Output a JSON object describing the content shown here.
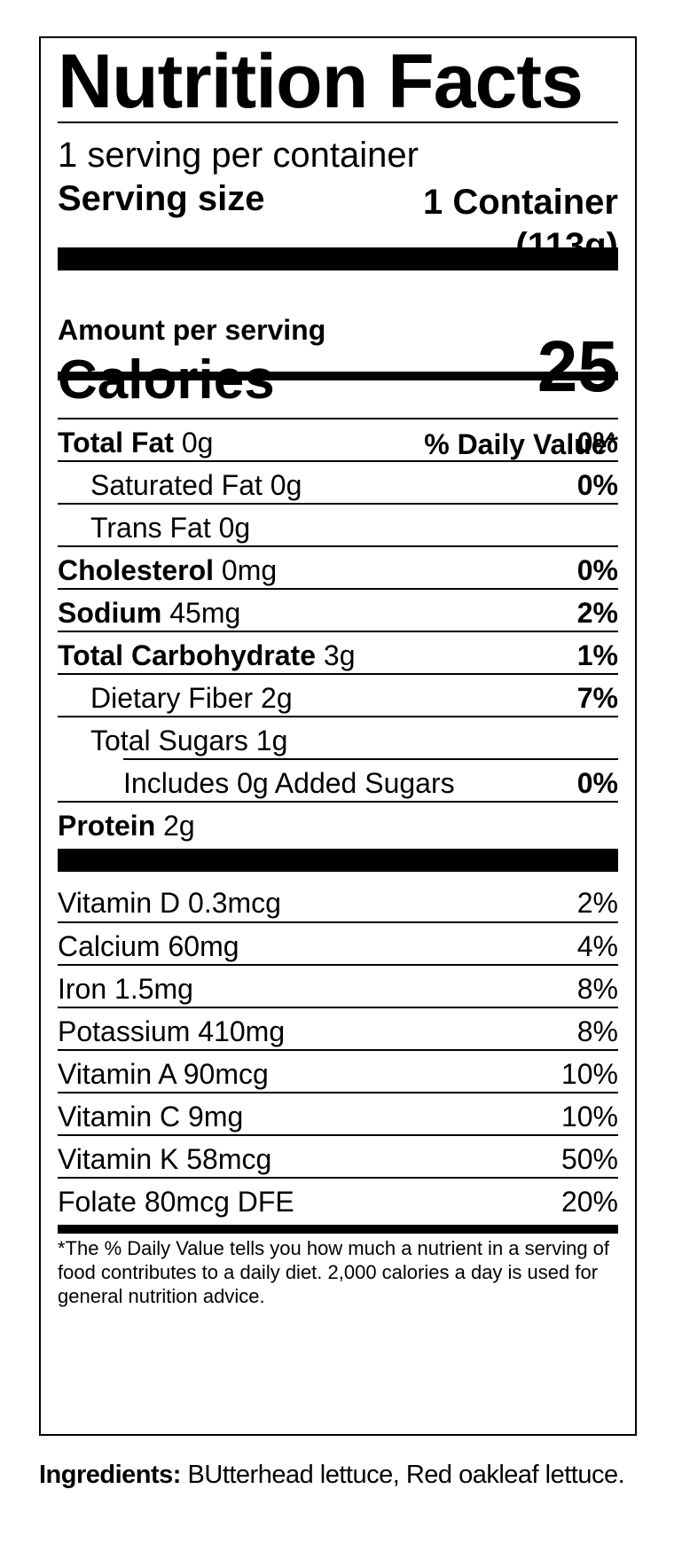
{
  "label": {
    "title": "Nutrition Facts",
    "servings_per_container": "1 serving per container",
    "serving_size_label": "Serving size",
    "serving_size_value_line1": "1 Container",
    "serving_size_value_line2": "(113g)",
    "amount_per_serving": "Amount per serving",
    "calories_label": "Calories",
    "calories_value": "25",
    "daily_value_header": "% Daily Value*",
    "nutrients": [
      {
        "name": "Total Fat",
        "amount": "0g",
        "dv": "0%"
      },
      {
        "name": "Saturated Fat",
        "amount": "0g",
        "dv": "0%"
      },
      {
        "name": "Trans Fat",
        "amount": "0g",
        "dv": ""
      },
      {
        "name": "Cholesterol",
        "amount": "0mg",
        "dv": "0%"
      },
      {
        "name": "Sodium",
        "amount": "45mg",
        "dv": "2%"
      },
      {
        "name": "Total Carbohydrate",
        "amount": "3g",
        "dv": "1%"
      },
      {
        "name": "Dietary Fiber",
        "amount": "2g",
        "dv": "7%"
      },
      {
        "name": "Total Sugars",
        "amount": "1g",
        "dv": ""
      },
      {
        "name": "Includes 0g Added Sugars",
        "amount": "",
        "dv": "0%"
      },
      {
        "name": "Protein",
        "amount": "2g",
        "dv": ""
      }
    ],
    "vitamins": [
      {
        "name": "Vitamin D 0.3mcg",
        "dv": "2%"
      },
      {
        "name": "Calcium 60mg",
        "dv": "4%"
      },
      {
        "name": "Iron 1.5mg",
        "dv": "8%"
      },
      {
        "name": "Potassium 410mg",
        "dv": "8%"
      },
      {
        "name": "Vitamin A 90mcg",
        "dv": "10%"
      },
      {
        "name": "Vitamin C 9mg",
        "dv": "10%"
      },
      {
        "name": "Vitamin K 58mcg",
        "dv": "50%"
      },
      {
        "name": "Folate 80mcg DFE",
        "dv": "20%"
      }
    ],
    "footnote": "*The % Daily Value tells you how much a nutrient in a serving of food contributes to a daily diet. 2,000 calories a day is used for general nutrition advice."
  },
  "ingredients": {
    "label": "Ingredients:",
    "text": "BUtterhead lettuce, Red oakleaf lettuce."
  }
}
